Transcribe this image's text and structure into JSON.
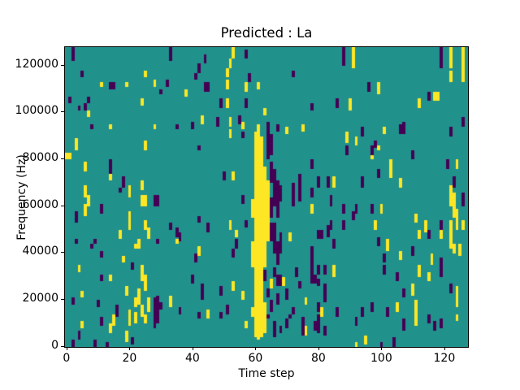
{
  "figure": {
    "background": "#ffffff"
  },
  "chart_data": {
    "type": "heatmap",
    "title": "Predicted : La",
    "xlabel": "Time step",
    "ylabel": "Frequency (Hz)",
    "grid": {
      "nx": 128,
      "ny": 128
    },
    "x_extent": [
      -0.5,
      127.5
    ],
    "y_extent_hz": [
      -500,
      127500
    ],
    "hz_per_bin": 1000,
    "xticks": [
      0,
      20,
      40,
      60,
      80,
      100,
      120
    ],
    "yticks": [
      0,
      20000,
      40000,
      60000,
      80000,
      100000,
      120000
    ],
    "colors": {
      "low": "#440154",
      "mid": "#21918c",
      "high": "#fde725"
    },
    "background_value": "mid",
    "runs_format": "[time_step, bin_start, bin_end, value] value:0=low(purple),1=high(yellow), bin0=bottom(0 Hz)",
    "runs": [
      [
        0,
        80,
        82,
        1
      ],
      [
        1,
        80,
        82,
        1
      ],
      [
        1,
        104,
        106,
        0
      ],
      [
        2,
        0,
        2,
        0
      ],
      [
        2,
        18,
        20,
        0
      ],
      [
        2,
        122,
        127,
        0
      ],
      [
        3,
        44,
        45,
        0
      ],
      [
        3,
        53,
        57,
        0
      ],
      [
        3,
        84,
        88,
        1
      ],
      [
        4,
        3,
        6,
        0
      ],
      [
        4,
        32,
        34,
        1
      ],
      [
        4,
        101,
        102,
        0
      ],
      [
        5,
        8,
        10,
        1
      ],
      [
        5,
        21,
        23,
        1
      ],
      [
        5,
        115,
        117,
        0
      ],
      [
        6,
        56,
        60,
        1
      ],
      [
        6,
        64,
        68,
        1
      ],
      [
        6,
        75,
        78,
        1
      ],
      [
        6,
        101,
        103,
        0
      ],
      [
        7,
        60,
        64,
        1
      ],
      [
        7,
        98,
        100,
        1
      ],
      [
        7,
        104,
        106,
        0
      ],
      [
        8,
        42,
        43,
        0
      ],
      [
        8,
        93,
        94,
        0
      ],
      [
        9,
        0,
        2,
        0
      ],
      [
        9,
        44,
        45,
        0
      ],
      [
        10,
        17,
        19,
        0
      ],
      [
        11,
        9,
        12,
        0
      ],
      [
        11,
        28,
        30,
        0
      ],
      [
        11,
        38,
        40,
        0
      ],
      [
        11,
        57,
        60,
        0
      ],
      [
        11,
        111,
        112,
        1
      ],
      [
        13,
        0,
        1,
        0
      ],
      [
        14,
        6,
        9,
        1
      ],
      [
        14,
        28,
        30,
        1
      ],
      [
        14,
        71,
        73,
        1
      ],
      [
        14,
        74,
        79,
        0
      ],
      [
        14,
        93,
        94,
        1
      ],
      [
        14,
        110,
        112,
        0
      ],
      [
        15,
        9,
        13,
        1
      ],
      [
        15,
        110,
        112,
        0
      ],
      [
        16,
        13,
        17,
        0
      ],
      [
        17,
        46,
        49,
        1
      ],
      [
        17,
        66,
        67,
        0
      ],
      [
        18,
        36,
        38,
        1
      ],
      [
        18,
        68,
        72,
        0
      ],
      [
        19,
        2,
        6,
        1
      ],
      [
        19,
        22,
        25,
        1
      ],
      [
        19,
        111,
        112,
        1
      ],
      [
        20,
        9,
        15,
        1
      ],
      [
        20,
        50,
        57,
        1
      ],
      [
        20,
        64,
        68,
        1
      ],
      [
        21,
        1,
        3,
        0
      ],
      [
        21,
        33,
        35,
        0
      ],
      [
        22,
        10,
        14,
        1
      ],
      [
        22,
        17,
        20,
        1
      ],
      [
        22,
        42,
        43,
        1
      ],
      [
        23,
        18,
        24,
        1
      ],
      [
        23,
        42,
        45,
        1
      ],
      [
        24,
        13,
        17,
        1
      ],
      [
        24,
        28,
        34,
        1
      ],
      [
        24,
        60,
        64,
        1
      ],
      [
        24,
        67,
        70,
        1
      ],
      [
        24,
        103,
        105,
        1
      ],
      [
        25,
        10,
        13,
        1
      ],
      [
        25,
        24,
        30,
        1
      ],
      [
        25,
        50,
        53,
        1
      ],
      [
        25,
        60,
        64,
        1
      ],
      [
        25,
        84,
        87,
        1
      ],
      [
        25,
        115,
        117,
        1
      ],
      [
        26,
        15,
        20,
        1
      ],
      [
        26,
        46,
        50,
        1
      ],
      [
        28,
        8,
        20,
        0
      ],
      [
        28,
        60,
        64,
        0
      ],
      [
        28,
        93,
        94,
        1
      ],
      [
        28,
        111,
        113,
        1
      ],
      [
        29,
        10,
        21,
        0
      ],
      [
        29,
        44,
        45,
        0
      ],
      [
        29,
        60,
        64,
        0
      ],
      [
        30,
        16,
        18,
        0
      ],
      [
        30,
        108,
        109,
        0
      ],
      [
        32,
        111,
        113,
        0
      ],
      [
        33,
        17,
        21,
        1
      ],
      [
        33,
        50,
        52,
        0
      ],
      [
        33,
        122,
        127,
        0
      ],
      [
        35,
        44,
        45,
        1
      ],
      [
        35,
        47,
        50,
        0
      ],
      [
        35,
        93,
        94,
        0
      ],
      [
        36,
        14,
        16,
        0
      ],
      [
        36,
        45,
        48,
        0
      ],
      [
        38,
        107,
        109,
        1
      ],
      [
        40,
        27,
        30,
        0
      ],
      [
        40,
        93,
        95,
        0
      ],
      [
        41,
        36,
        39,
        0
      ],
      [
        41,
        114,
        116,
        0
      ],
      [
        42,
        12,
        14,
        0
      ],
      [
        42,
        39,
        42,
        1
      ],
      [
        42,
        53,
        55,
        0
      ],
      [
        42,
        84,
        85,
        0
      ],
      [
        42,
        117,
        120,
        0
      ],
      [
        43,
        20,
        22,
        0
      ],
      [
        43,
        23,
        26,
        0
      ],
      [
        43,
        95,
        98,
        1
      ],
      [
        44,
        109,
        112,
        0
      ],
      [
        44,
        121,
        124,
        0
      ],
      [
        45,
        12,
        15,
        1
      ],
      [
        45,
        49,
        52,
        0
      ],
      [
        45,
        109,
        112,
        0
      ],
      [
        48,
        94,
        97,
        0
      ],
      [
        49,
        12,
        14,
        0
      ],
      [
        49,
        22,
        25,
        0
      ],
      [
        49,
        102,
        105,
        0
      ],
      [
        50,
        71,
        74,
        0
      ],
      [
        51,
        14,
        17,
        0
      ],
      [
        51,
        102,
        105,
        1
      ],
      [
        51,
        110,
        113,
        1
      ],
      [
        51,
        115,
        118,
        1
      ],
      [
        52,
        50,
        53,
        1
      ],
      [
        52,
        89,
        92,
        1
      ],
      [
        52,
        94,
        97,
        1
      ],
      [
        52,
        119,
        122,
        1
      ],
      [
        53,
        24,
        27,
        1
      ],
      [
        53,
        38,
        41,
        0
      ],
      [
        53,
        71,
        74,
        1
      ],
      [
        53,
        123,
        127,
        1
      ],
      [
        54,
        42,
        45,
        0
      ],
      [
        54,
        47,
        49,
        1
      ],
      [
        55,
        95,
        98,
        0
      ],
      [
        56,
        20,
        23,
        1
      ],
      [
        56,
        61,
        64,
        0
      ],
      [
        56,
        89,
        91,
        0
      ],
      [
        56,
        93,
        95,
        1
      ],
      [
        57,
        8,
        10,
        1
      ],
      [
        57,
        51,
        53,
        0
      ],
      [
        57,
        102,
        105,
        0
      ],
      [
        57,
        109,
        112,
        1
      ],
      [
        57,
        123,
        126,
        0
      ],
      [
        58,
        113,
        116,
        0
      ],
      [
        59,
        13,
        16,
        1
      ],
      [
        59,
        34,
        44,
        1
      ],
      [
        59,
        55,
        62,
        1
      ],
      [
        60,
        4,
        91,
        1
      ],
      [
        61,
        3,
        94,
        1
      ],
      [
        61,
        110,
        112,
        1
      ],
      [
        62,
        4,
        89,
        1
      ],
      [
        63,
        6,
        18,
        1
      ],
      [
        63,
        28,
        32,
        0
      ],
      [
        63,
        34,
        76,
        1
      ],
      [
        63,
        99,
        101,
        1
      ],
      [
        64,
        12,
        13,
        0
      ],
      [
        64,
        21,
        24,
        0
      ],
      [
        64,
        45,
        70,
        1
      ],
      [
        64,
        80,
        95,
        0
      ],
      [
        65,
        15,
        19,
        0
      ],
      [
        65,
        25,
        28,
        1
      ],
      [
        65,
        45,
        52,
        0
      ],
      [
        65,
        55,
        63,
        0
      ],
      [
        65,
        70,
        78,
        0
      ],
      [
        65,
        82,
        90,
        0
      ],
      [
        66,
        4,
        10,
        0
      ],
      [
        66,
        30,
        33,
        0
      ],
      [
        66,
        40,
        52,
        0
      ],
      [
        66,
        60,
        75,
        0
      ],
      [
        67,
        18,
        22,
        0
      ],
      [
        67,
        26,
        30,
        0
      ],
      [
        67,
        35,
        44,
        0
      ],
      [
        67,
        55,
        70,
        0
      ],
      [
        67,
        92,
        94,
        0
      ],
      [
        68,
        6,
        8,
        0
      ],
      [
        68,
        26,
        30,
        0
      ],
      [
        68,
        40,
        48,
        0
      ],
      [
        68,
        62,
        68,
        0
      ],
      [
        69,
        26,
        29,
        1
      ],
      [
        70,
        8,
        11,
        0
      ],
      [
        70,
        20,
        24,
        0
      ],
      [
        70,
        91,
        93,
        1
      ],
      [
        71,
        12,
        13,
        0
      ],
      [
        71,
        45,
        48,
        1
      ],
      [
        72,
        14,
        16,
        0
      ],
      [
        72,
        60,
        69,
        0
      ],
      [
        72,
        115,
        117,
        0
      ],
      [
        73,
        30,
        33,
        0
      ],
      [
        74,
        25,
        27,
        0
      ],
      [
        74,
        62,
        73,
        0
      ],
      [
        75,
        5,
        12,
        0
      ],
      [
        75,
        92,
        94,
        1
      ],
      [
        76,
        5,
        8,
        1
      ],
      [
        76,
        18,
        20,
        1
      ],
      [
        78,
        27,
        42,
        0
      ],
      [
        78,
        57,
        60,
        1
      ],
      [
        78,
        64,
        67,
        0
      ],
      [
        78,
        76,
        79,
        0
      ],
      [
        78,
        101,
        103,
        0
      ],
      [
        79,
        7,
        10,
        0
      ],
      [
        79,
        27,
        30,
        0
      ],
      [
        80,
        6,
        13,
        0
      ],
      [
        80,
        15,
        18,
        0
      ],
      [
        80,
        26,
        28,
        0
      ],
      [
        80,
        31,
        34,
        0
      ],
      [
        80,
        46,
        49,
        0
      ],
      [
        80,
        68,
        72,
        0
      ],
      [
        81,
        13,
        16,
        1
      ],
      [
        81,
        46,
        49,
        0
      ],
      [
        82,
        5,
        8,
        0
      ],
      [
        82,
        19,
        26,
        0
      ],
      [
        82,
        31,
        34,
        0
      ],
      [
        83,
        47,
        51,
        0
      ],
      [
        83,
        68,
        72,
        0
      ],
      [
        84,
        50,
        53,
        0
      ],
      [
        84,
        60,
        64,
        0
      ],
      [
        85,
        30,
        34,
        1
      ],
      [
        85,
        42,
        45,
        0
      ],
      [
        85,
        68,
        72,
        1
      ],
      [
        86,
        13,
        16,
        0
      ],
      [
        86,
        102,
        105,
        0
      ],
      [
        88,
        50,
        53,
        0
      ],
      [
        88,
        57,
        60,
        0
      ],
      [
        88,
        120,
        127,
        0
      ],
      [
        89,
        82,
        85,
        0
      ],
      [
        89,
        87,
        91,
        1
      ],
      [
        90,
        101,
        105,
        1
      ],
      [
        91,
        54,
        57,
        0
      ],
      [
        91,
        119,
        127,
        1
      ],
      [
        92,
        0,
        1,
        1
      ],
      [
        92,
        9,
        12,
        0
      ],
      [
        92,
        57,
        60,
        0
      ],
      [
        92,
        86,
        89,
        1
      ],
      [
        94,
        13,
        16,
        0
      ],
      [
        94,
        68,
        72,
        0
      ],
      [
        94,
        90,
        93,
        0
      ],
      [
        95,
        1,
        4,
        1
      ],
      [
        96,
        109,
        112,
        0
      ],
      [
        97,
        15,
        18,
        0
      ],
      [
        97,
        57,
        60,
        0
      ],
      [
        97,
        80,
        83,
        1
      ],
      [
        97,
        82,
        85,
        0
      ],
      [
        98,
        50,
        53,
        1
      ],
      [
        98,
        85,
        87,
        0
      ],
      [
        99,
        43,
        46,
        0
      ],
      [
        99,
        72,
        75,
        0
      ],
      [
        99,
        84,
        85,
        1
      ],
      [
        99,
        108,
        112,
        1
      ],
      [
        100,
        0,
        1,
        0
      ],
      [
        100,
        57,
        60,
        1
      ],
      [
        101,
        31,
        34,
        0
      ],
      [
        101,
        36,
        39,
        0
      ],
      [
        101,
        91,
        93,
        1
      ],
      [
        102,
        13,
        16,
        0
      ],
      [
        102,
        41,
        45,
        1
      ],
      [
        103,
        72,
        79,
        1
      ],
      [
        104,
        0,
        3,
        0
      ],
      [
        105,
        15,
        18,
        1
      ],
      [
        105,
        28,
        31,
        0
      ],
      [
        106,
        37,
        40,
        1
      ],
      [
        106,
        68,
        71,
        1
      ],
      [
        106,
        91,
        94,
        0
      ],
      [
        107,
        7,
        11,
        0
      ],
      [
        107,
        21,
        24,
        0
      ],
      [
        107,
        91,
        95,
        0
      ],
      [
        110,
        22,
        26,
        1
      ],
      [
        110,
        39,
        42,
        0
      ],
      [
        110,
        80,
        83,
        0
      ],
      [
        111,
        9,
        19,
        1
      ],
      [
        111,
        53,
        56,
        1
      ],
      [
        112,
        30,
        34,
        1
      ],
      [
        112,
        46,
        49,
        1
      ],
      [
        112,
        102,
        105,
        1
      ],
      [
        114,
        49,
        53,
        1
      ],
      [
        115,
        10,
        13,
        0
      ],
      [
        115,
        28,
        31,
        1
      ],
      [
        115,
        46,
        49,
        0
      ],
      [
        115,
        105,
        108,
        0
      ],
      [
        116,
        35,
        39,
        1
      ],
      [
        117,
        7,
        10,
        0
      ],
      [
        117,
        105,
        108,
        1
      ],
      [
        118,
        105,
        108,
        1
      ],
      [
        119,
        8,
        11,
        0
      ],
      [
        119,
        30,
        37,
        0
      ],
      [
        119,
        46,
        49,
        1
      ],
      [
        119,
        50,
        53,
        0
      ],
      [
        119,
        119,
        127,
        0
      ],
      [
        121,
        76,
        79,
        0
      ],
      [
        122,
        23,
        26,
        0
      ],
      [
        122,
        42,
        45,
        1
      ],
      [
        122,
        45,
        53,
        1
      ],
      [
        122,
        60,
        68,
        1
      ],
      [
        122,
        90,
        93,
        0
      ],
      [
        122,
        113,
        117,
        1
      ],
      [
        122,
        119,
        127,
        1
      ],
      [
        123,
        40,
        43,
        1
      ],
      [
        123,
        55,
        65,
        1
      ],
      [
        123,
        68,
        72,
        0
      ],
      [
        124,
        11,
        13,
        1
      ],
      [
        124,
        17,
        25,
        1
      ],
      [
        124,
        50,
        58,
        1
      ],
      [
        124,
        76,
        79,
        1
      ],
      [
        125,
        39,
        43,
        1
      ],
      [
        126,
        50,
        53,
        1
      ],
      [
        126,
        60,
        65,
        0
      ],
      [
        126,
        94,
        97,
        0
      ],
      [
        126,
        113,
        127,
        1
      ]
    ]
  }
}
